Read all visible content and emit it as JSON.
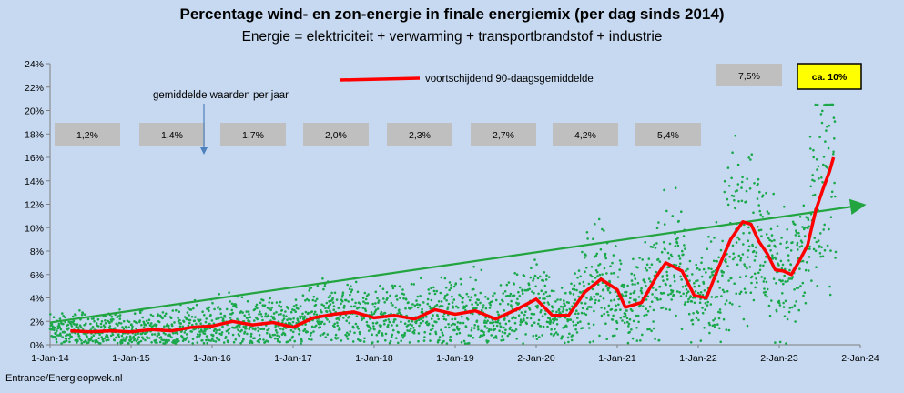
{
  "header": {
    "title": "Percentage wind- en zon-energie in finale energiemix (per dag sinds 2014)",
    "subtitle": "Energie = elektriciteit + verwarming + transportbrandstof + industrie"
  },
  "footer": {
    "source": "Entrance/Energieopwek.nl"
  },
  "colors": {
    "background": "#c6d9f1",
    "points": "#1aa84a",
    "trend": "#22a43f",
    "moving_avg": "#ff0000",
    "box": "#bfbfbf",
    "highlight_box": "#ffff00"
  },
  "chart_data": {
    "type": "scatter",
    "title": "Percentage wind- en zon-energie in finale energiemix (per dag sinds 2014)",
    "subtitle": "Energie = elektriciteit + verwarming + transportbrandstof + industrie",
    "x_ticks": [
      "1-Jan-14",
      "1-Jan-15",
      "1-Jan-16",
      "1-Jan-17",
      "1-Jan-18",
      "1-Jan-19",
      "2-Jan-20",
      "1-Jan-21",
      "1-Jan-22",
      "2-Jan-23",
      "2-Jan-24"
    ],
    "y_ticks": [
      "0%",
      "2%",
      "4%",
      "6%",
      "8%",
      "10%",
      "12%",
      "14%",
      "16%",
      "18%",
      "20%",
      "22%",
      "24%"
    ],
    "xlim": [
      2014.0,
      2024.0
    ],
    "ylim": [
      0,
      24
    ],
    "grid": false,
    "legend": {
      "label": "voortschijdend 90-daagsgemiddelde",
      "placement": "top-center"
    },
    "annotation": "gemiddelde waarden per jaar",
    "yearly_averages": [
      {
        "label": "1,2%",
        "year": 2014
      },
      {
        "label": "1,4%",
        "year": 2015
      },
      {
        "label": "1,7%",
        "year": 2016
      },
      {
        "label": "2,0%",
        "year": 2017
      },
      {
        "label": "2,3%",
        "year": 2018
      },
      {
        "label": "2,7%",
        "year": 2019
      },
      {
        "label": "4,2%",
        "year": 2020
      },
      {
        "label": "5,4%",
        "year": 2021
      },
      {
        "label": "7,5%",
        "year": 2022
      },
      {
        "label": "ca. 10%",
        "year": 2023
      }
    ],
    "trend_line": {
      "x": [
        2014.0,
        2024.0
      ],
      "y": [
        1.9,
        11.9
      ]
    },
    "moving_average": {
      "x": [
        2014.25,
        2014.5,
        2014.75,
        2015.0,
        2015.25,
        2015.5,
        2015.75,
        2016.0,
        2016.25,
        2016.5,
        2016.75,
        2017.0,
        2017.25,
        2017.5,
        2017.75,
        2018.0,
        2018.25,
        2018.5,
        2018.75,
        2019.0,
        2019.25,
        2019.5,
        2019.75,
        2020.0,
        2020.2,
        2020.4,
        2020.6,
        2020.8,
        2021.0,
        2021.1,
        2021.3,
        2021.5,
        2021.6,
        2021.8,
        2021.95,
        2022.1,
        2022.25,
        2022.4,
        2022.55,
        2022.65,
        2022.75,
        2022.85,
        2022.95,
        2023.05,
        2023.15,
        2023.25,
        2023.35,
        2023.45,
        2023.55,
        2023.62,
        2023.67
      ],
      "y": [
        1.2,
        1.1,
        1.2,
        1.1,
        1.3,
        1.2,
        1.5,
        1.6,
        2.0,
        1.7,
        1.9,
        1.5,
        2.3,
        2.6,
        2.8,
        2.3,
        2.5,
        2.2,
        3.0,
        2.6,
        2.9,
        2.2,
        3.0,
        3.9,
        2.5,
        2.5,
        4.5,
        5.6,
        4.7,
        3.2,
        3.6,
        6.0,
        7.0,
        6.3,
        4.2,
        4.0,
        6.6,
        9.0,
        10.5,
        10.3,
        8.8,
        7.8,
        6.4,
        6.3,
        6.0,
        7.2,
        8.5,
        11.5,
        13.5,
        14.8,
        16.0
      ]
    },
    "series": [
      {
        "name": "",
        "description_points": "daily values, generated density",
        "points": []
      }
    ]
  }
}
